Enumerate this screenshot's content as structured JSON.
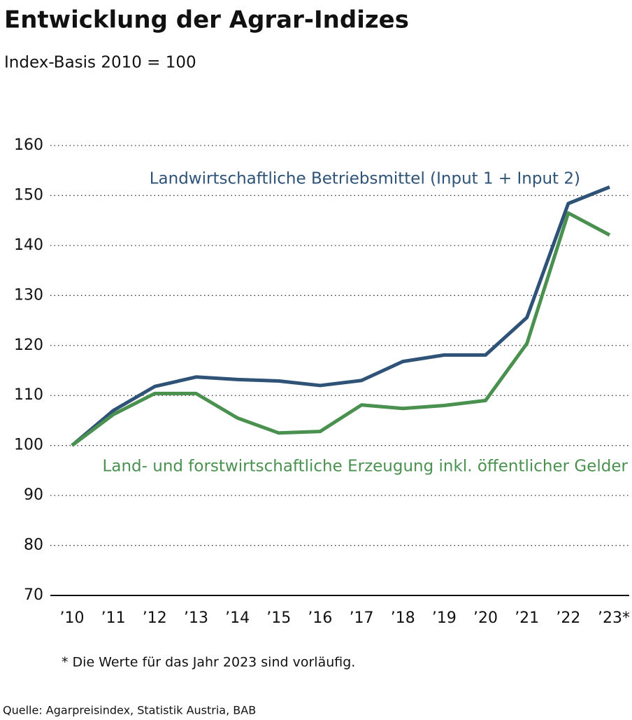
{
  "chart_data": {
    "type": "line",
    "title": "Entwicklung der Agrar-Indizes",
    "subtitle": "Index-Basis 2010 = 100",
    "categories": [
      "’10",
      "’11",
      "’12",
      "’13",
      "’14",
      "’15",
      "’16",
      "’17",
      "’18",
      "’19",
      "’20",
      "’21",
      "’22",
      "’23*"
    ],
    "series": [
      {
        "name": "Landwirtschaftliche Betriebsmittel (Input 1 + Input 2)",
        "color": "#2e5377",
        "values": [
          100,
          107.0,
          111.8,
          113.7,
          113.2,
          112.9,
          112.0,
          113.0,
          116.8,
          118.1,
          118.1,
          125.6,
          148.4,
          151.7
        ]
      },
      {
        "name": "Land- und forstwirtschaftliche Erzeugung inkl. öffentlicher Gelder",
        "color": "#4a9150",
        "values": [
          100,
          106.2,
          110.4,
          110.4,
          105.5,
          102.5,
          102.8,
          108.1,
          107.4,
          108.0,
          109.0,
          120.4,
          146.5,
          142.1
        ]
      }
    ],
    "ylim": [
      70,
      160
    ],
    "yticks": [
      70,
      80,
      90,
      100,
      110,
      120,
      130,
      140,
      150,
      160
    ],
    "grid": true,
    "footnote": "* Die Werte für das Jahr 2023 sind vorläufig.",
    "source": "Quelle: Agarpreisindex, Statistik Austria, BAB"
  }
}
